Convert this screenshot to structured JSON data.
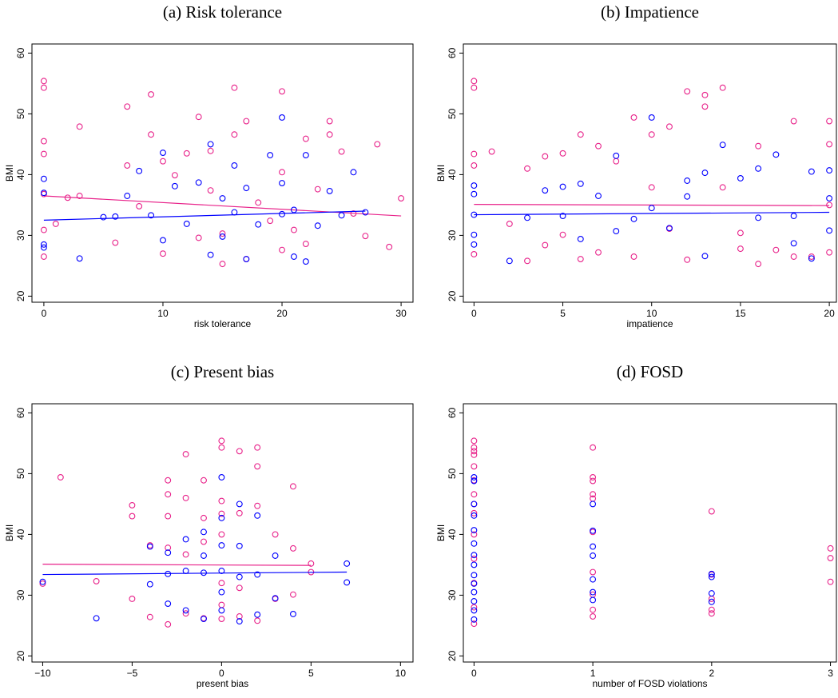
{
  "chart_data": [
    {
      "type": "scatter",
      "title": "(a) Risk tolerance",
      "x_label": "risk tolerance",
      "y_label": "BMI",
      "xlim": [
        -1,
        31
      ],
      "ylim": [
        19,
        61.5
      ],
      "xticks": [
        0,
        10,
        20,
        30
      ],
      "yticks": [
        20,
        30,
        40,
        50,
        60
      ],
      "series": [
        {
          "color": "#e8228a",
          "x": [
            0,
            0,
            0,
            0,
            0,
            0,
            0,
            1,
            2,
            3,
            3,
            6,
            7,
            7,
            8,
            9,
            9,
            10,
            10,
            11,
            12,
            13,
            13,
            14,
            14,
            15,
            15,
            16,
            16,
            17,
            17,
            18,
            19,
            20,
            20,
            20,
            21,
            22,
            22,
            23,
            24,
            24,
            25,
            26,
            27,
            28,
            29,
            30
          ],
          "values": [
            55.4,
            54.3,
            45.5,
            43.4,
            36.8,
            30.9,
            26.5,
            31.9,
            36.2,
            47.9,
            36.5,
            28.8,
            51.2,
            41.5,
            34.8,
            53.2,
            46.6,
            42.2,
            27,
            39.9,
            43.5,
            49.5,
            29.6,
            43.9,
            37.4,
            25.3,
            30.3,
            54.3,
            46.6,
            48.8,
            26.1,
            35.4,
            32.4,
            53.7,
            40.4,
            27.6,
            30.9,
            45.9,
            28.6,
            37.6,
            48.8,
            46.6,
            43.8,
            33.6,
            29.9,
            45,
            28.1,
            36.1
          ],
          "fit": {
            "x": [
              0,
              30
            ],
            "values": [
              36.5,
              33.2
            ]
          }
        },
        {
          "color": "#0000ff",
          "x": [
            0,
            0,
            0,
            0,
            3,
            5,
            6,
            7,
            8,
            9,
            10,
            10,
            11,
            12,
            13,
            14,
            14,
            15,
            15,
            16,
            16,
            17,
            17,
            18,
            19,
            20,
            20,
            20,
            21,
            21,
            22,
            22,
            23,
            24,
            25,
            26,
            27
          ],
          "values": [
            39.3,
            37,
            28.5,
            28,
            26.2,
            33,
            33.1,
            36.5,
            40.6,
            33.3,
            43.6,
            29.2,
            38.1,
            31.9,
            38.7,
            45,
            26.8,
            36.1,
            29.8,
            41.5,
            33.8,
            26.1,
            37.8,
            31.8,
            43.2,
            49.4,
            33.5,
            38.6,
            34.2,
            26.5,
            43.2,
            25.7,
            31.6,
            37.3,
            33.3,
            40.4,
            33.8
          ],
          "fit": {
            "x": [
              0,
              27
            ],
            "values": [
              32.5,
              34.0
            ]
          }
        }
      ]
    },
    {
      "type": "scatter",
      "title": "(b) Impatience",
      "x_label": "impatience",
      "y_label": "BMI",
      "xlim": [
        -0.6,
        20.4
      ],
      "ylim": [
        19,
        61.5
      ],
      "xticks": [
        0,
        5,
        10,
        15,
        20
      ],
      "yticks": [
        20,
        30,
        40,
        50,
        60
      ],
      "series": [
        {
          "color": "#e8228a",
          "x": [
            0,
            0,
            0,
            0,
            0,
            1,
            2,
            3,
            3,
            4,
            4,
            5,
            5,
            6,
            6,
            7,
            7,
            8,
            9,
            9,
            10,
            10,
            11,
            11,
            12,
            12,
            13,
            13,
            14,
            14,
            15,
            15,
            16,
            16,
            17,
            18,
            18,
            19,
            20,
            20,
            20,
            20
          ],
          "values": [
            55.4,
            54.3,
            43.4,
            41.5,
            26.9,
            43.8,
            31.9,
            41.0,
            25.8,
            43.0,
            28.4,
            43.5,
            30.1,
            46.6,
            26.1,
            44.7,
            27.2,
            42.2,
            49.4,
            26.5,
            46.6,
            37.9,
            47.9,
            31.1,
            53.7,
            26.0,
            53.1,
            51.2,
            54.3,
            37.9,
            30.4,
            27.8,
            44.7,
            25.3,
            27.6,
            48.8,
            26.5,
            26.5,
            48.8,
            45.0,
            35.0,
            27.2
          ],
          "fit": {
            "x": [
              0,
              20
            ],
            "values": [
              35.1,
              34.9
            ]
          }
        },
        {
          "color": "#0000ff",
          "x": [
            0,
            0,
            0,
            0,
            0,
            2,
            3,
            4,
            5,
            5,
            6,
            6,
            7,
            8,
            8,
            9,
            10,
            10,
            11,
            12,
            12,
            13,
            13,
            14,
            15,
            16,
            16,
            17,
            18,
            18,
            19,
            19,
            20,
            20,
            20
          ],
          "values": [
            38.2,
            36.8,
            33.4,
            30.1,
            28.5,
            25.8,
            32.9,
            37.4,
            38.0,
            33.2,
            38.5,
            29.4,
            36.5,
            43.1,
            30.7,
            32.7,
            49.4,
            34.5,
            31.2,
            39.0,
            36.4,
            40.3,
            26.6,
            44.9,
            39.4,
            41.0,
            32.9,
            43.3,
            33.2,
            28.7,
            40.5,
            26.2,
            40.7,
            36.1,
            30.8
          ],
          "fit": {
            "x": [
              0,
              20
            ],
            "values": [
              33.4,
              33.8
            ]
          }
        }
      ]
    },
    {
      "type": "scatter",
      "title": "(c) Present bias",
      "x_label": "present bias",
      "y_label": "BMI",
      "xlim": [
        -10.6,
        10.7
      ],
      "ylim": [
        19,
        61.5
      ],
      "xticks": [
        {
          "value": -10,
          "label": "−10"
        },
        {
          "value": -5,
          "label": "−5"
        },
        0,
        5,
        10
      ],
      "yticks": [
        20,
        30,
        40,
        50,
        60
      ],
      "series": [
        {
          "color": "#e8228a",
          "x": [
            -10,
            -9,
            -7,
            -5,
            -5,
            -5,
            -4,
            -4,
            -3,
            -3,
            -3,
            -3,
            -3,
            -2,
            -2,
            -2,
            -2,
            -1,
            -1,
            -1,
            -1,
            0,
            0,
            0,
            0,
            0,
            0,
            0,
            0,
            1,
            1,
            1,
            1,
            2,
            2,
            2,
            2,
            3,
            3,
            4,
            4,
            4,
            5,
            5
          ],
          "values": [
            31.9,
            49.4,
            32.3,
            44.8,
            43.0,
            29.4,
            38.2,
            26.4,
            48.9,
            46.6,
            43.0,
            37.8,
            25.2,
            53.2,
            46.0,
            36.7,
            27.0,
            48.9,
            42.7,
            38.8,
            26.2,
            55.4,
            54.3,
            45.5,
            43.4,
            40.0,
            32.0,
            28.4,
            26.1,
            53.7,
            43.5,
            31.2,
            26.5,
            54.3,
            51.2,
            44.7,
            25.8,
            40.0,
            29.4,
            47.9,
            37.7,
            30.1,
            35.2,
            33.8
          ],
          "fit": {
            "x": [
              -10,
              5
            ],
            "values": [
              35.1,
              34.9
            ]
          }
        },
        {
          "color": "#0000ff",
          "x": [
            -10,
            -7,
            -4,
            -4,
            -3,
            -3,
            -3,
            -2,
            -2,
            -2,
            -1,
            -1,
            -1,
            -1,
            0,
            0,
            0,
            0,
            0,
            0,
            1,
            1,
            1,
            1,
            2,
            2,
            2,
            3,
            3,
            4,
            7,
            7
          ],
          "values": [
            32.2,
            26.2,
            38.0,
            31.8,
            37.0,
            33.5,
            28.6,
            39.2,
            34.0,
            27.5,
            40.4,
            36.5,
            33.7,
            26.1,
            49.4,
            42.7,
            38.2,
            34.0,
            30.5,
            27.5,
            45.0,
            38.1,
            33.0,
            25.7,
            43.1,
            33.4,
            26.8,
            36.5,
            29.5,
            26.9,
            35.2,
            32.1
          ],
          "fit": {
            "x": [
              -10,
              7
            ],
            "values": [
              33.4,
              33.8
            ]
          }
        }
      ]
    },
    {
      "type": "scatter",
      "title": "(d) FOSD",
      "x_label": "number of FOSD violations",
      "y_label": "BMI",
      "xlim": [
        -0.09,
        3.05
      ],
      "ylim": [
        19,
        61.5
      ],
      "xticks": [
        0,
        1,
        2,
        3
      ],
      "yticks": [
        20,
        30,
        40,
        50,
        60
      ],
      "series": [
        {
          "color": "#e8228a",
          "x": [
            0,
            0,
            0,
            0,
            0,
            0,
            0,
            0,
            0,
            0,
            0,
            0,
            0,
            0,
            1,
            1,
            1,
            1,
            1,
            1,
            1,
            1,
            1,
            1,
            2,
            2,
            2,
            2,
            2,
            3,
            3,
            3
          ],
          "values": [
            55.4,
            54.3,
            53.7,
            53.1,
            51.2,
            48.9,
            46.6,
            45.0,
            43.5,
            40.0,
            36.0,
            32.0,
            28.0,
            25.3,
            54.3,
            49.4,
            48.8,
            46.6,
            45.9,
            40.4,
            33.8,
            30.1,
            27.6,
            26.5,
            43.8,
            33.4,
            29.4,
            27.6,
            27.0,
            37.7,
            36.1,
            32.2
          ]
        },
        {
          "color": "#0000ff",
          "x": [
            0,
            0,
            0,
            0,
            0,
            0,
            0,
            0,
            0,
            0,
            0,
            0,
            0,
            0,
            1,
            1,
            1,
            1,
            1,
            1,
            1,
            2,
            2,
            2,
            2
          ],
          "values": [
            49.4,
            48.8,
            45.0,
            43.1,
            40.7,
            38.5,
            36.6,
            35.0,
            33.3,
            31.9,
            30.5,
            29.0,
            27.5,
            26.0,
            45.0,
            40.6,
            38.0,
            36.5,
            32.6,
            30.5,
            29.2,
            33.5,
            33.0,
            30.3,
            28.9
          ]
        }
      ]
    }
  ]
}
